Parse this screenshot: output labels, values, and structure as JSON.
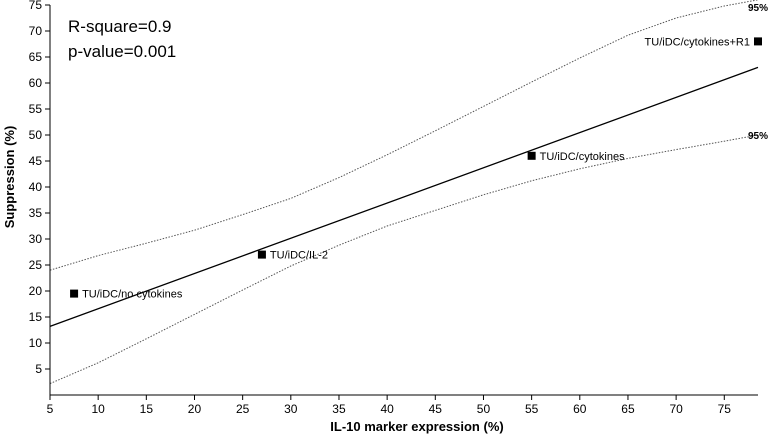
{
  "chart_data": {
    "type": "scatter",
    "xlabel": "IL-10 marker expression (%)",
    "ylabel": "Suppression (%)",
    "xlim": [
      5,
      78.5
    ],
    "ylim": [
      0,
      75
    ],
    "x_ticks": [
      "5",
      "10",
      "15",
      "20",
      "25",
      "30",
      "35",
      "40",
      "45",
      "50",
      "55",
      "60",
      "65",
      "70",
      "75"
    ],
    "y_ticks": [
      "5",
      "10",
      "15",
      "20",
      "25",
      "30",
      "35",
      "40",
      "45",
      "50",
      "55",
      "60",
      "65",
      "70",
      "75"
    ],
    "annotations": [
      "R-square=0.9",
      "p-value=0.001"
    ],
    "points": [
      {
        "label": "TU/iDC/no cytokines",
        "x": 7.5,
        "y": 19.5
      },
      {
        "label": "TU/iDC/IL-2",
        "x": 27,
        "y": 27
      },
      {
        "label": "TU/iDC/cytokines",
        "x": 55,
        "y": 46
      },
      {
        "label": "TU/iDC/cytokines+R1",
        "x": 78.5,
        "y": 68
      }
    ],
    "regression_line": {
      "x": [
        5,
        78.5
      ],
      "y": [
        13.2,
        63
      ]
    },
    "confidence_upper": {
      "label": "95%",
      "x": [
        5,
        10,
        15,
        20,
        25,
        30,
        35,
        40,
        45,
        50,
        55,
        60,
        65,
        70,
        75,
        78.5
      ],
      "y": [
        24,
        26.8,
        29.2,
        31.7,
        34.7,
        37.8,
        41.8,
        46.2,
        50.8,
        55.5,
        60.2,
        64.8,
        69.2,
        72.5,
        74.8,
        76
      ]
    },
    "confidence_lower": {
      "label": "95%",
      "x": [
        5,
        10,
        15,
        20,
        25,
        30,
        35,
        40,
        45,
        50,
        55,
        60,
        65,
        70,
        75,
        78.5
      ],
      "y": [
        2.2,
        6.2,
        10.8,
        15.5,
        20.2,
        24.8,
        28.8,
        32.5,
        35.5,
        38.5,
        41.2,
        43.5,
        45.5,
        47.2,
        48.8,
        50
      ]
    },
    "grid": false
  }
}
